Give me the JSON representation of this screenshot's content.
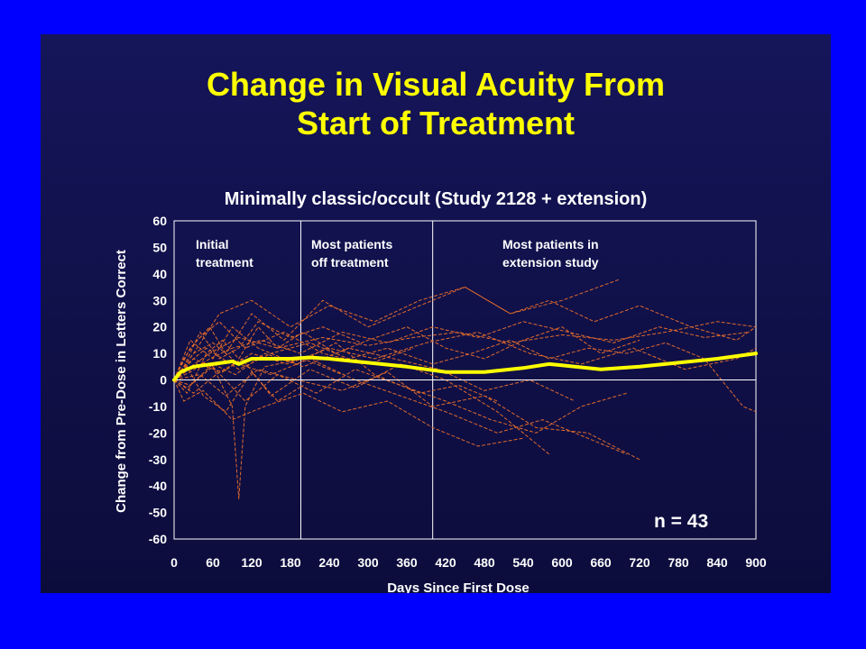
{
  "slide": {
    "title_line1": "Change in Visual Acuity From",
    "title_line2": "Start of Treatment"
  },
  "chart_data": {
    "type": "line",
    "title": "Minimally classic/occult (Study 2128 + extension)",
    "xlabel": "Days Since First Dose",
    "ylabel": "Change from Pre-Dose in Letters Correct",
    "xlim": [
      0,
      900
    ],
    "ylim": [
      -60,
      60
    ],
    "x_ticks": [
      0,
      60,
      120,
      180,
      240,
      300,
      360,
      420,
      480,
      540,
      600,
      660,
      720,
      780,
      840,
      900
    ],
    "y_ticks": [
      60,
      50,
      40,
      30,
      20,
      10,
      0,
      -10,
      -20,
      -30,
      -40,
      -50,
      -60
    ],
    "grid": false,
    "reference_line_y": 0,
    "phase_dividers_x": [
      196,
      400
    ],
    "phases": [
      {
        "line1": "Initial",
        "line2": "treatment"
      },
      {
        "line1": "Most patients",
        "line2": "off treatment"
      },
      {
        "line1": "Most patients in",
        "line2": "extension study"
      }
    ],
    "annotation": "n = 43",
    "colors": {
      "individual": "#e06a2a",
      "mean": "#ffff00"
    },
    "mean_series": {
      "name": "",
      "x": [
        0,
        10,
        20,
        30,
        45,
        60,
        75,
        90,
        100,
        110,
        120,
        150,
        180,
        210,
        240,
        300,
        360,
        420,
        480,
        540,
        580,
        600,
        660,
        720,
        780,
        840,
        900
      ],
      "y": [
        0,
        3,
        4,
        5,
        5.5,
        6,
        6.5,
        7,
        6,
        7,
        8,
        8,
        8,
        8.5,
        8,
        6.5,
        5,
        3,
        3,
        4.5,
        6,
        5.5,
        4,
        5,
        6.5,
        8,
        10
      ]
    },
    "individual_series": [
      {
        "x": [
          0,
          15,
          40,
          70,
          100,
          130,
          180,
          230,
          290
        ],
        "y": [
          0,
          5,
          18,
          8,
          12,
          22,
          16,
          20,
          14
        ]
      },
      {
        "x": [
          0,
          20,
          50,
          75,
          100,
          130,
          160,
          200,
          250,
          300,
          360,
          420,
          480,
          540,
          600,
          660,
          720
        ],
        "y": [
          0,
          -5,
          10,
          15,
          8,
          20,
          12,
          18,
          10,
          15,
          20,
          12,
          8,
          15,
          20,
          10,
          15
        ]
      },
      {
        "x": [
          0,
          30,
          60,
          90,
          100,
          110,
          140,
          200,
          260
        ],
        "y": [
          0,
          8,
          5,
          -10,
          -45,
          -10,
          5,
          8,
          2
        ]
      },
      {
        "x": [
          0,
          25,
          55,
          80,
          120,
          170,
          230,
          300,
          380,
          450,
          520,
          580,
          650,
          720,
          800,
          870,
          900
        ],
        "y": [
          0,
          12,
          20,
          10,
          25,
          15,
          30,
          20,
          28,
          35,
          25,
          30,
          22,
          28,
          20,
          15,
          20
        ]
      },
      {
        "x": [
          0,
          20,
          60,
          110,
          160,
          220,
          280,
          350,
          420,
          490,
          560,
          630,
          700
        ],
        "y": [
          0,
          -3,
          5,
          -8,
          2,
          -5,
          4,
          -2,
          -8,
          -15,
          -20,
          -10,
          -5
        ]
      },
      {
        "x": [
          0,
          30,
          70,
          120,
          180,
          240,
          310,
          380,
          450,
          520,
          600,
          690
        ],
        "y": [
          0,
          10,
          25,
          30,
          20,
          28,
          22,
          30,
          35,
          25,
          30,
          38
        ]
      },
      {
        "x": [
          0,
          15,
          45,
          90,
          140,
          200,
          260,
          330,
          400,
          470,
          540
        ],
        "y": [
          0,
          -8,
          -4,
          -15,
          -10,
          -5,
          -12,
          -8,
          -18,
          -25,
          -22
        ]
      },
      {
        "x": [
          0,
          20,
          50,
          100,
          150,
          210,
          270,
          330,
          400,
          460,
          520,
          580,
          640,
          700,
          760,
          820,
          880,
          900
        ],
        "y": [
          0,
          6,
          12,
          4,
          10,
          14,
          8,
          12,
          6,
          10,
          15,
          8,
          12,
          10,
          14,
          8,
          -10,
          -12
        ]
      },
      {
        "x": [
          0,
          25,
          60,
          90,
          130,
          190,
          250,
          310,
          380,
          440,
          500
        ],
        "y": [
          0,
          15,
          8,
          20,
          12,
          6,
          14,
          2,
          -5,
          -2,
          -8
        ]
      },
      {
        "x": [
          0,
          40,
          80,
          130,
          190,
          260,
          330,
          400,
          480,
          560,
          640,
          720
        ],
        "y": [
          0,
          2,
          -6,
          4,
          0,
          -4,
          3,
          -10,
          -6,
          -18,
          -20,
          -30
        ]
      },
      {
        "x": [
          0,
          20,
          55,
          100,
          160,
          230,
          300,
          370,
          440,
          520,
          600,
          680,
          760,
          840,
          900
        ],
        "y": [
          0,
          4,
          10,
          16,
          12,
          16,
          13,
          16,
          18,
          14,
          17,
          15,
          18,
          22,
          20
        ]
      },
      {
        "x": [
          0,
          30,
          65,
          105,
          150,
          210,
          280,
          350,
          420,
          500,
          580
        ],
        "y": [
          0,
          -5,
          2,
          8,
          -6,
          4,
          -3,
          6,
          0,
          -12,
          -28
        ]
      },
      {
        "x": [
          0,
          15,
          35,
          70,
          110,
          170,
          230,
          300,
          370
        ],
        "y": [
          0,
          8,
          15,
          22,
          12,
          18,
          10,
          6,
          12
        ]
      },
      {
        "x": [
          0,
          25,
          60,
          95,
          140,
          200,
          270,
          340,
          410,
          480,
          550,
          620
        ],
        "y": [
          0,
          -2,
          6,
          2,
          10,
          5,
          12,
          8,
          4,
          -4,
          0,
          -8
        ]
      },
      {
        "x": [
          0,
          35,
          75,
          120,
          175,
          240,
          310,
          390,
          470,
          550,
          630,
          710,
          790,
          870,
          900
        ],
        "y": [
          0,
          6,
          3,
          10,
          6,
          12,
          8,
          14,
          18,
          10,
          6,
          12,
          4,
          8,
          12
        ]
      },
      {
        "x": [
          0,
          20,
          45,
          80,
          120,
          160,
          200
        ],
        "y": [
          0,
          5,
          -6,
          -12,
          3,
          -8,
          -2
        ]
      },
      {
        "x": [
          0,
          25,
          55,
          90,
          135,
          195,
          260,
          330,
          400,
          470,
          540,
          610,
          680,
          750,
          820,
          890
        ],
        "y": [
          0,
          3,
          8,
          12,
          15,
          10,
          18,
          14,
          20,
          16,
          22,
          18,
          14,
          20,
          16,
          18
        ]
      },
      {
        "x": [
          0,
          30,
          60,
          100,
          150,
          210,
          280,
          350,
          420,
          500,
          570,
          640,
          700
        ],
        "y": [
          0,
          10,
          14,
          6,
          2,
          8,
          0,
          -6,
          -12,
          -20,
          -15,
          -22,
          -28
        ]
      }
    ]
  }
}
